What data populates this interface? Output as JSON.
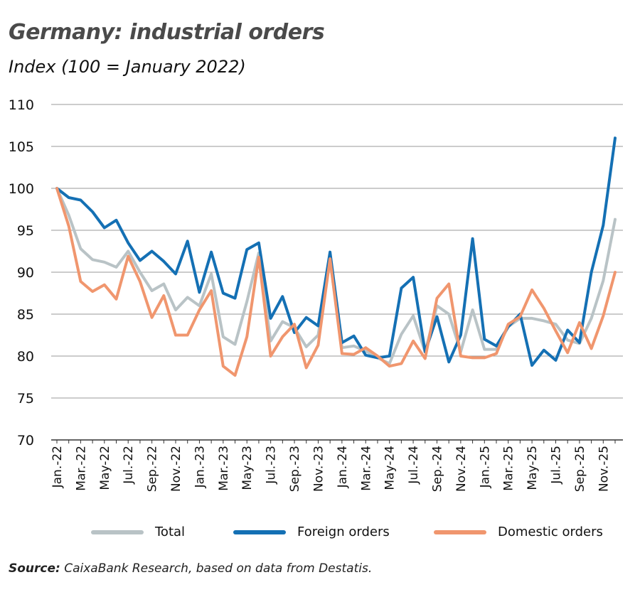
{
  "title": "Germany: industrial orders",
  "subtitle": "Index (100 = January 2022)",
  "source": {
    "prefix": "Source:",
    "text": " CaixaBank Research, based on data from Destatis."
  },
  "colors": {
    "total": "#b9c3c6",
    "foreign": "#1470b4",
    "domestic": "#f0966e",
    "grid": "#9a9a9a",
    "axis": "#333333"
  },
  "legend": [
    {
      "key": "total",
      "label": "Total"
    },
    {
      "key": "foreign",
      "label": "Foreign orders"
    },
    {
      "key": "domestic",
      "label": "Domestic orders"
    }
  ],
  "chart_data": {
    "type": "line",
    "title": "Germany: industrial orders",
    "subtitle": "Index (100 = January 2022)",
    "ylim": [
      70,
      110
    ],
    "yticks": [
      70,
      75,
      80,
      85,
      90,
      95,
      100,
      105,
      110
    ],
    "grid": true,
    "legend_position": "bottom",
    "x": [
      "Jan.-22",
      "Feb.-22",
      "Mar.-22",
      "Apr.-22",
      "May-22",
      "Jun.-22",
      "Jul.-22",
      "Aug.-22",
      "Sep.-22",
      "Oct.-22",
      "Nov.-22",
      "Dec.-22",
      "Jan.-23",
      "Feb.-23",
      "Mar.-23",
      "Apr.-23",
      "May-23",
      "Jun.-23",
      "Jul.-23",
      "Aug.-23",
      "Sep.-23",
      "Oct.-23",
      "Nov.-23",
      "Dec.-23",
      "Jan.-24",
      "Feb.-24",
      "Mar.-24",
      "Apr.-24",
      "May-24",
      "Jun.-24",
      "Jul.-24",
      "Aug.-24",
      "Sep.-24",
      "Oct.-24",
      "Nov.-24",
      "Dec.-24",
      "Jan.-25",
      "Feb.-25",
      "Mar.-25",
      "Apr.-25",
      "May-25",
      "Jun.-25",
      "Jul.-25",
      "Aug.-25",
      "Sep.-25",
      "Oct.-25",
      "Nov.-25",
      "Dec.-25"
    ],
    "tick_labels": [
      "Jan.-22",
      "Mar.-22",
      "May-22",
      "Jul.-22",
      "Sep.-22",
      "Nov.-22",
      "Jan.-23",
      "Mar.-23",
      "May-23",
      "Jul.-23",
      "Sep.-23",
      "Nov.-23",
      "Jan.-24",
      "Mar.-24",
      "May-24",
      "Jul.-24",
      "Sep.-24",
      "Nov.-24",
      "Jan.-25",
      "Mar.-25",
      "May-25",
      "Jul.-25",
      "Sep.-25",
      "Nov.-25"
    ],
    "series": [
      {
        "key": "total",
        "name": "Total",
        "values": [
          100,
          96.8,
          92.8,
          91.5,
          91.2,
          90.6,
          92.5,
          90.0,
          87.8,
          88.6,
          85.5,
          87.0,
          86.0,
          89.8,
          82.3,
          81.4,
          86.5,
          92.3,
          81.8,
          84.1,
          83.4,
          81.1,
          82.5,
          91.4,
          81.0,
          81.2,
          80.6,
          79.8,
          79.1,
          82.6,
          84.8,
          80.5,
          86.0,
          85.0,
          80.5,
          85.5,
          80.8,
          80.8,
          83.5,
          84.5,
          84.5,
          84.2,
          83.8,
          81.9,
          81.5,
          84.5,
          89.0,
          96.3
        ]
      },
      {
        "key": "foreign",
        "name": "Foreign orders",
        "values": [
          100,
          98.9,
          98.6,
          97.2,
          95.3,
          96.2,
          93.5,
          91.4,
          92.5,
          91.3,
          89.8,
          93.7,
          87.6,
          92.4,
          87.5,
          86.9,
          92.7,
          93.5,
          84.5,
          87.1,
          82.8,
          84.6,
          83.6,
          92.4,
          81.6,
          82.4,
          80.1,
          79.8,
          80.0,
          88.1,
          89.4,
          80.5,
          84.7,
          79.3,
          82.5,
          94.0,
          82.0,
          81.2,
          83.5,
          85.0,
          78.9,
          80.7,
          79.5,
          83.1,
          81.6,
          90.0,
          95.6,
          106.0
        ]
      },
      {
        "key": "domestic",
        "name": "Domestic orders",
        "values": [
          100,
          95.5,
          88.9,
          87.7,
          88.5,
          86.8,
          91.9,
          88.9,
          84.6,
          87.2,
          82.5,
          82.5,
          85.5,
          87.8,
          78.8,
          77.7,
          82.3,
          91.8,
          80.0,
          82.3,
          83.8,
          78.6,
          81.3,
          91.6,
          80.3,
          80.2,
          81.0,
          80.0,
          78.8,
          79.1,
          81.8,
          79.7,
          86.9,
          88.6,
          80.0,
          79.8,
          79.8,
          80.3,
          83.8,
          84.7,
          87.9,
          85.7,
          83.0,
          80.4,
          84.0,
          80.9,
          84.8,
          90.0
        ]
      }
    ]
  }
}
